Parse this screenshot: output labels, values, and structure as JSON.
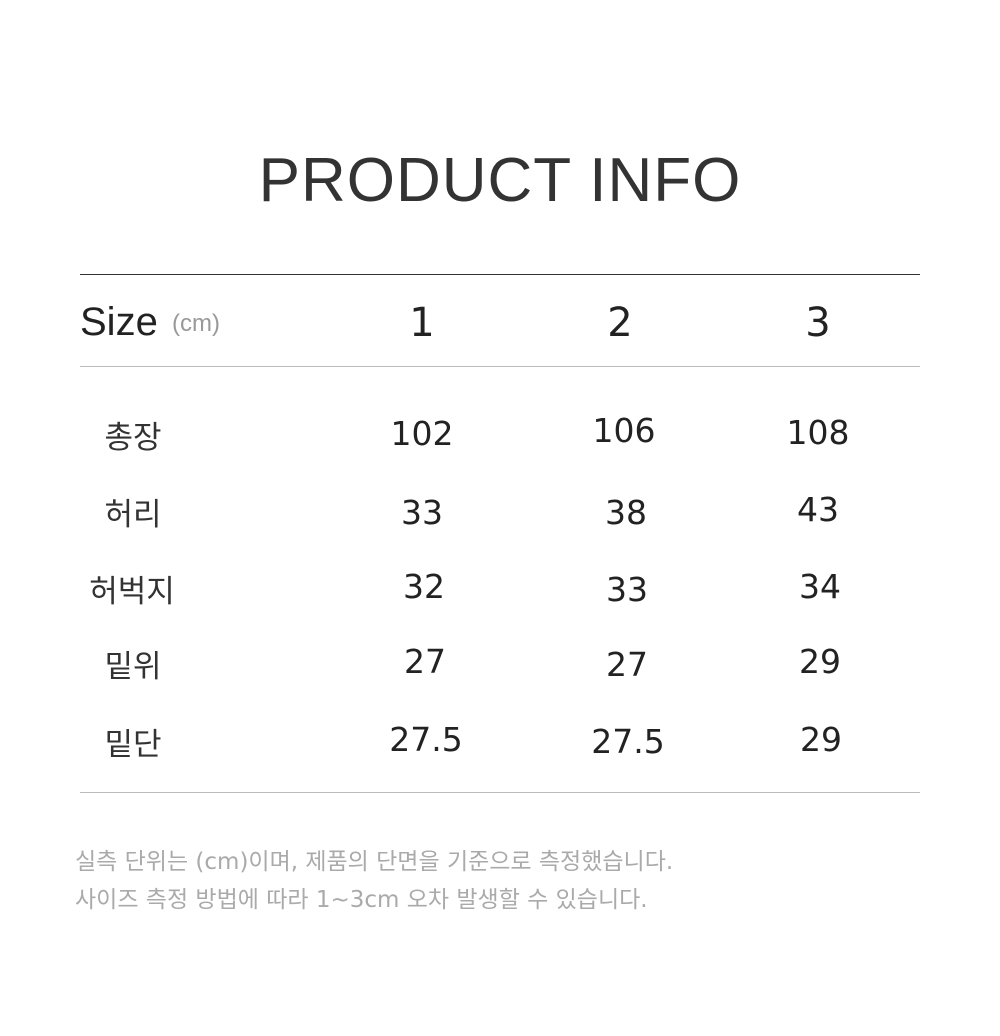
{
  "title": "PRODUCT INFO",
  "table": {
    "header_label": "Size",
    "header_unit": "(cm)",
    "columns": [
      "1",
      "2",
      "3"
    ],
    "rows": [
      {
        "label": "총장",
        "values": [
          "102",
          "106",
          "108"
        ]
      },
      {
        "label": "허리",
        "values": [
          "33",
          "38",
          "43"
        ]
      },
      {
        "label": "허벅지",
        "values": [
          "32",
          "33",
          "34"
        ]
      },
      {
        "label": "밑위",
        "values": [
          "27",
          "27",
          "29"
        ]
      },
      {
        "label": "밑단",
        "values": [
          "27.5",
          "27.5",
          "29"
        ]
      }
    ]
  },
  "notes": [
    "실측 단위는 (cm)이며, 제품의 단면을 기준으로 측정했습니다.",
    "사이즈 측정 방법에 따라 1~3cm 오차 발생할 수 있습니다."
  ]
}
